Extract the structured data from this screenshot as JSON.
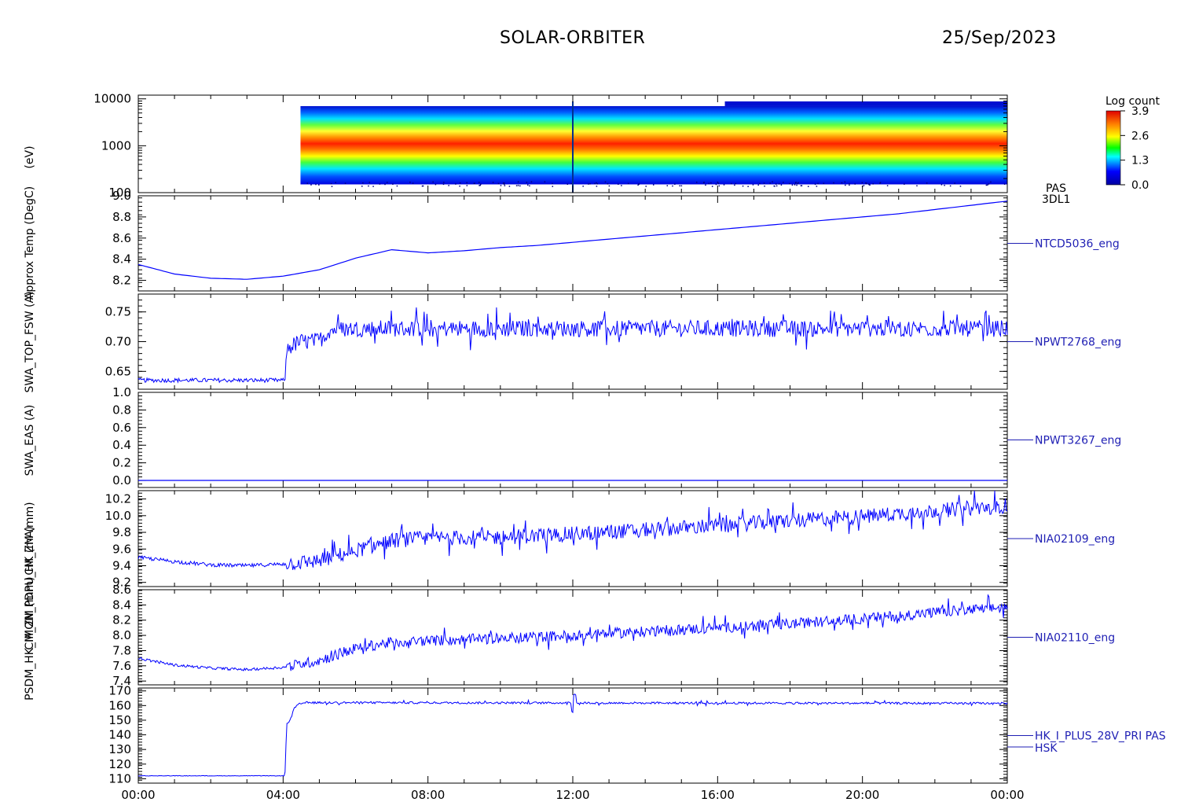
{
  "header": {
    "mission": "SOLAR-ORBITER",
    "date": "25/Sep/2023"
  },
  "colors": {
    "trace": "#0000ff",
    "axis": "#000000",
    "panel_label": "#1f1fb4"
  },
  "chart_data": [
    {
      "type": "heatmap",
      "ylabel": "(eV)",
      "yscale": "log",
      "ylim": [
        100,
        12000
      ],
      "yticks": [
        "100",
        "1000",
        "10000"
      ],
      "x_range_hours": [
        0,
        24
      ],
      "data_start_hours": 4.48,
      "energy_band_eV": [
        150,
        7000
      ],
      "peak_band_eV": [
        600,
        1300
      ],
      "colorbar": {
        "title": "Log count",
        "range": [
          0.0,
          3.9
        ],
        "ticks": [
          "3.9",
          "2.6",
          "1.3",
          "0.0"
        ]
      },
      "labels": [
        "PAS",
        "3DL1"
      ]
    },
    {
      "type": "line",
      "ylabel": "Approx Temp (DegC)",
      "ylim": [
        8.1,
        9.0
      ],
      "yticks": [
        "8.2",
        "8.4",
        "8.6",
        "8.8",
        "9.0"
      ],
      "label": "NTCD5036_eng",
      "x": [
        0,
        1,
        2,
        3,
        4,
        5,
        6,
        7,
        8,
        9,
        10,
        11,
        12,
        13,
        14,
        15,
        16,
        17,
        18,
        19,
        20,
        21,
        22,
        23,
        24
      ],
      "y": [
        8.35,
        8.26,
        8.22,
        8.21,
        8.24,
        8.3,
        8.41,
        8.49,
        8.46,
        8.48,
        8.51,
        8.53,
        8.56,
        8.59,
        8.62,
        8.65,
        8.68,
        8.71,
        8.74,
        8.77,
        8.8,
        8.83,
        8.87,
        8.91,
        8.95
      ]
    },
    {
      "type": "line",
      "ylabel": "SWA_TOP_FSW (A)",
      "ylim": [
        0.62,
        0.78
      ],
      "yticks": [
        "0.65",
        "0.70",
        "0.75"
      ],
      "label": "NPWT2768_eng",
      "x": [
        0,
        4.05,
        4.1,
        4.3,
        4.5,
        4.7,
        5.0,
        5.3,
        6,
        24
      ],
      "y": [
        0.635,
        0.635,
        0.688,
        0.695,
        0.7,
        0.7,
        0.702,
        0.72,
        0.722,
        0.722
      ],
      "noise_amplitude": 0.014
    },
    {
      "type": "line",
      "ylabel": "SWA_EAS (A)",
      "ylim": [
        -0.08,
        1.0
      ],
      "yticks": [
        "0.0",
        "0.2",
        "0.4",
        "0.6",
        "0.8",
        "1.0"
      ],
      "label": "NPWT3267_eng",
      "x": [
        0,
        24
      ],
      "y": [
        0.0,
        0.0
      ]
    },
    {
      "type": "line",
      "ylabel": "CM_ZM (mm)",
      "ylim": [
        9.15,
        10.3
      ],
      "yticks": [
        "9.2",
        "9.4",
        "9.6",
        "9.8",
        "10.0",
        "10.2"
      ],
      "label": "NIA02109_eng",
      "x": [
        0,
        1,
        2,
        3,
        4,
        5,
        6,
        7,
        8,
        10,
        12,
        14,
        16,
        18,
        20,
        22,
        24
      ],
      "y": [
        9.5,
        9.45,
        9.41,
        9.4,
        9.42,
        9.46,
        9.58,
        9.7,
        9.73,
        9.74,
        9.78,
        9.83,
        9.88,
        9.94,
        9.99,
        10.06,
        10.12
      ],
      "noise_amplitude": 0.09
    },
    {
      "type": "line",
      "ylabel": "CM_ZM (mm)",
      "ylim": [
        7.35,
        8.6
      ],
      "yticks": [
        "7.4",
        "7.6",
        "7.8",
        "8.0",
        "8.2",
        "8.4",
        "8.6"
      ],
      "label": "NIA02110_eng",
      "x": [
        0,
        1,
        2,
        3,
        4,
        5,
        6,
        7,
        8,
        10,
        12,
        14,
        16,
        18,
        20,
        22,
        24
      ],
      "y": [
        7.7,
        7.61,
        7.57,
        7.55,
        7.58,
        7.67,
        7.83,
        7.91,
        7.93,
        7.96,
        8.0,
        8.05,
        8.1,
        8.15,
        8.22,
        8.3,
        8.37
      ],
      "noise_amplitude": 0.07
    },
    {
      "type": "line",
      "ylabel": "PSDM_HK_IMON_PDPU_HK (mA)",
      "ylim": [
        107,
        172
      ],
      "yticks": [
        "110",
        "120",
        "130",
        "140",
        "150",
        "160",
        "170"
      ],
      "label": "HK_I_PLUS_28V_PRI PAS",
      "label2": "HSK",
      "x": [
        0,
        4.05,
        4.1,
        4.2,
        4.3,
        4.45,
        4.6,
        24
      ],
      "y": [
        112,
        112,
        148,
        150,
        158,
        161,
        162,
        161.5
      ],
      "noise_amplitude": 0.7
    }
  ],
  "x_axis": {
    "range_hours": [
      0,
      24
    ],
    "ticks": [
      "00:00",
      "04:00",
      "08:00",
      "12:00",
      "16:00",
      "20:00",
      "00:00"
    ]
  },
  "side_labels": [
    "(eV)",
    "Approx Temp (DegC)",
    "SWA_TOP_FSW (A)",
    "SWA_EAS (A)",
    "CM_ZM (mm)",
    "CM_ZM (mm)",
    "PSDM_HK_IMON_PDPU_HK (mA)"
  ]
}
